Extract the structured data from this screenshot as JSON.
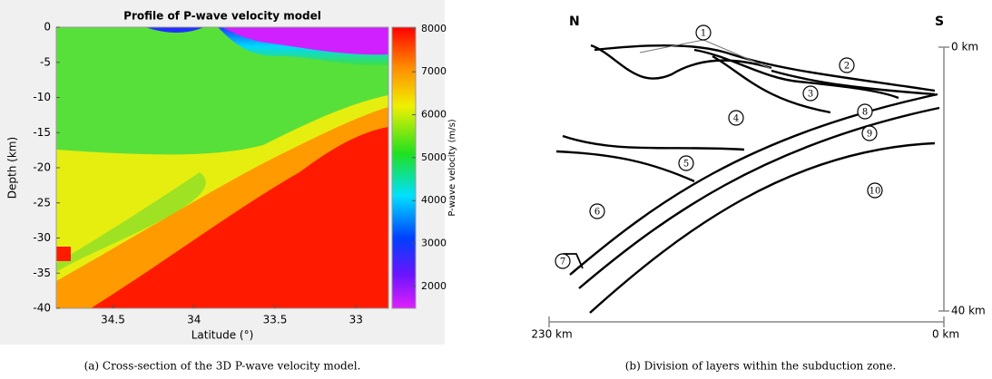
{
  "figure_a": {
    "title": "Profile of P-wave velocity model",
    "xlabel": "Latitude (°)",
    "ylabel": "Depth (km)",
    "xlim": [
      34.85,
      32.8
    ],
    "xticks": [
      34.5,
      34,
      33.5,
      33
    ],
    "ylim": [
      -40,
      0
    ],
    "yticks": [
      0,
      -5,
      -10,
      -15,
      -20,
      -25,
      -30,
      -35,
      -40
    ],
    "colorbar_label": "P-wave velocity (m/s)",
    "clim": [
      1490,
      8040
    ],
    "cticks": [
      2000,
      3000,
      4000,
      5000,
      6000,
      7000,
      8000
    ],
    "caption": "(a) Cross-section of the 3D P-wave velocity model."
  },
  "figure_b": {
    "north": "N",
    "south": "S",
    "depth_top": "0 km",
    "depth_bottom": "40 km",
    "dist_left": "230 km",
    "dist_right": "0 km",
    "layers": [
      "1",
      "2",
      "3",
      "4",
      "5",
      "6",
      "7",
      "8",
      "9",
      "10"
    ],
    "caption": "(b) Division of layers within the subduction zone."
  }
}
